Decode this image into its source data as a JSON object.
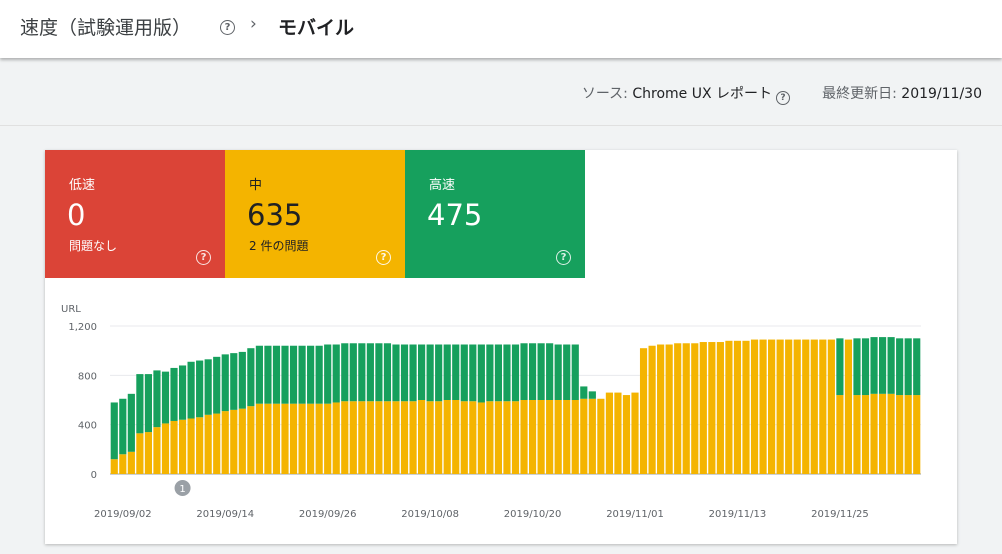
{
  "header": {
    "root": "速度（試験運用版）",
    "current": "モバイル",
    "help_icon": "help-circle-icon",
    "chevron_icon": "chevron-right-icon"
  },
  "source": {
    "label": "ソース: ",
    "value": "Chrome UX レポート",
    "help_icon": "help-circle-icon"
  },
  "updated": {
    "label": "最終更新日: ",
    "value": "2019/11/30"
  },
  "tiles": [
    {
      "label": "低速",
      "count": "0",
      "sub": "問題なし",
      "color": "#db4437"
    },
    {
      "label": "中",
      "count": "635",
      "sub": "2 件の問題",
      "color": "#f4b400"
    },
    {
      "label": "高速",
      "count": "475",
      "sub": "",
      "color": "#16a05d"
    }
  ],
  "chart_data": {
    "type": "bar",
    "stacked": true,
    "ylabel": "URL",
    "ylim": [
      0,
      1200
    ],
    "yticks": [
      "0",
      "400",
      "800",
      "1,200"
    ],
    "xtick_labels": [
      "2019/09/02",
      "2019/09/14",
      "2019/09/26",
      "2019/10/08",
      "2019/10/20",
      "2019/11/01",
      "2019/11/13",
      "2019/11/25"
    ],
    "xtick_index": [
      1,
      13,
      25,
      37,
      49,
      61,
      73,
      85
    ],
    "annotation": {
      "label": "1",
      "index": 8
    },
    "grid": true,
    "series": [
      {
        "color": "#f4b400",
        "values": [
          120,
          160,
          180,
          330,
          340,
          380,
          410,
          430,
          440,
          450,
          460,
          480,
          490,
          510,
          520,
          530,
          550,
          570,
          570,
          570,
          570,
          570,
          570,
          570,
          570,
          570,
          580,
          590,
          590,
          590,
          590,
          590,
          590,
          590,
          590,
          590,
          600,
          590,
          590,
          600,
          600,
          590,
          590,
          580,
          590,
          590,
          590,
          590,
          600,
          600,
          600,
          600,
          600,
          600,
          600,
          610,
          610,
          610,
          660,
          660,
          640,
          660,
          1020,
          1040,
          1050,
          1050,
          1060,
          1060,
          1060,
          1070,
          1070,
          1070,
          1080,
          1080,
          1080,
          1090,
          1090,
          1090,
          1090,
          1090,
          1090,
          1090,
          1090,
          1090,
          1090,
          640,
          1090,
          640,
          640,
          650,
          650,
          650,
          640,
          640,
          640
        ]
      },
      {
        "color": "#16a05d",
        "values": [
          460,
          450,
          470,
          480,
          470,
          460,
          420,
          430,
          440,
          460,
          460,
          450,
          460,
          460,
          460,
          460,
          470,
          470,
          470,
          470,
          470,
          470,
          470,
          470,
          470,
          480,
          470,
          470,
          470,
          470,
          470,
          470,
          470,
          460,
          460,
          460,
          450,
          460,
          460,
          450,
          450,
          460,
          460,
          470,
          460,
          460,
          460,
          460,
          460,
          460,
          460,
          460,
          450,
          450,
          450,
          100,
          60,
          0,
          0,
          0,
          0,
          0,
          0,
          0,
          0,
          0,
          0,
          0,
          0,
          0,
          0,
          0,
          0,
          0,
          0,
          0,
          0,
          0,
          0,
          0,
          0,
          0,
          0,
          0,
          0,
          460,
          0,
          460,
          460,
          460,
          460,
          460,
          460,
          460,
          460
        ]
      }
    ]
  }
}
